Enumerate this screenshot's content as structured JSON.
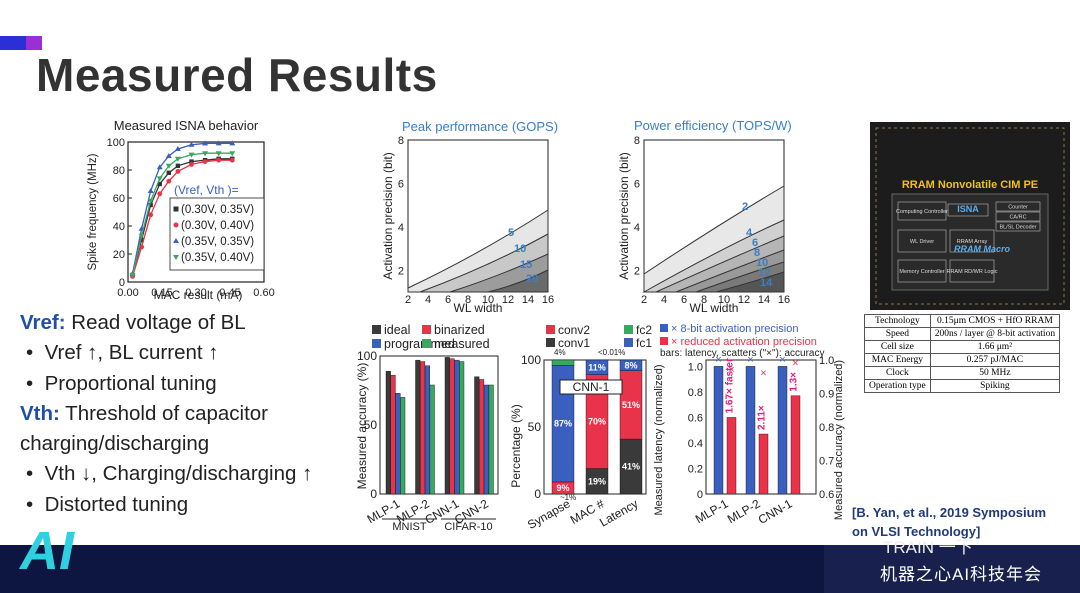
{
  "title": "Measured Results",
  "colors": {
    "blue": "#3a5fbf",
    "red": "#e8334a",
    "green": "#3aa860",
    "dark": "#3a3a3a",
    "header": "#3a7ec8",
    "footer": "#0d1640"
  },
  "notes": {
    "vref_label": "Vref:",
    "vref_text": " Read voltage of BL",
    "b1": "Vref ↑, BL current ↑",
    "b2": "Proportional tuning",
    "vth_label": "Vth:",
    "vth_text": " Threshold of capacitor charging/discharging",
    "b3": "Vth ↓, Charging/discharging ↑",
    "b4": "Distorted tuning"
  },
  "citation": {
    "line1": "[B. Yan, et al., 2019 Symposium",
    "line2": "on VLSI Technology]"
  },
  "spec_table": [
    [
      "Technology",
      "0.15μm CMOS + HfO RRAM"
    ],
    [
      "Speed",
      "200ns / layer @ 8-bit activation"
    ],
    [
      "Cell size",
      "1.66 μm²"
    ],
    [
      "MAC Energy",
      "0.257 pJ/MAC"
    ],
    [
      "Clock",
      "50 MHz"
    ],
    [
      "Operation type",
      "Spiking"
    ]
  ],
  "chip": {
    "title": "RRAM Nonvolatile CIM PE",
    "blocks": [
      "Counter",
      "CA/RC",
      "BL/SL Decoder",
      "Computing Controller",
      "ISNA",
      "WL Driver",
      "RRAM Array",
      "Memory Controller",
      "RRAM RD/WR Logic",
      "RRAM Macro"
    ]
  },
  "footer": {
    "event": "机器之心AI科技年会",
    "watermark": "TRAIN 一下",
    "logo": "AI"
  },
  "chart_data": [
    {
      "type": "line",
      "title": "Measured ISNA behavior",
      "xlabel": "MAC result (mA)",
      "ylabel": "Spike frequency (MHz)",
      "xlim": [
        0,
        0.6
      ],
      "ylim": [
        0,
        100
      ],
      "xticks": [
        "0.00",
        "0.15",
        "0.30",
        "0.45",
        "0.60"
      ],
      "yticks": [
        "0",
        "20",
        "40",
        "60",
        "80",
        "100"
      ],
      "legend_title": "(Vref, Vth )=",
      "series": [
        {
          "name": "(0.30V, 0.35V)",
          "color": "#333333",
          "marker": "square",
          "x": [
            0.02,
            0.06,
            0.1,
            0.14,
            0.18,
            0.22,
            0.28,
            0.34,
            0.4,
            0.46
          ],
          "y": [
            5,
            30,
            55,
            70,
            78,
            83,
            86,
            87,
            88,
            88
          ]
        },
        {
          "name": "(0.30V, 0.40V)",
          "color": "#e8334a",
          "marker": "circle",
          "x": [
            0.02,
            0.06,
            0.1,
            0.14,
            0.18,
            0.22,
            0.28,
            0.34,
            0.4,
            0.46
          ],
          "y": [
            4,
            25,
            48,
            63,
            72,
            79,
            84,
            86,
            87,
            87
          ]
        },
        {
          "name": "(0.35V, 0.35V)",
          "color": "#3a5fbf",
          "marker": "triangle",
          "x": [
            0.02,
            0.06,
            0.1,
            0.14,
            0.18,
            0.22,
            0.28,
            0.34,
            0.4,
            0.46
          ],
          "y": [
            6,
            38,
            65,
            82,
            90,
            95,
            98,
            99,
            99,
            99
          ]
        },
        {
          "name": "(0.35V, 0.40V)",
          "color": "#3aa860",
          "marker": "triangle-down",
          "x": [
            0.02,
            0.06,
            0.1,
            0.14,
            0.18,
            0.22,
            0.28,
            0.34,
            0.4,
            0.46
          ],
          "y": [
            5,
            33,
            58,
            74,
            83,
            88,
            91,
            92,
            92,
            92
          ]
        }
      ]
    },
    {
      "type": "contour",
      "title": "Peak performance (GOPS)",
      "xlabel": "WL width",
      "ylabel": "Activation precision (bit)",
      "xticks": [
        "2",
        "4",
        "6",
        "8",
        "10",
        "12",
        "14",
        "16"
      ],
      "yticks": [
        "2",
        "4",
        "6",
        "8"
      ],
      "contour_labels": [
        "5",
        "10",
        "15",
        "20"
      ]
    },
    {
      "type": "contour",
      "title": "Power efficiency (TOPS/W)",
      "xlabel": "WL width",
      "ylabel": "Activation precision (bit)",
      "xticks": [
        "2",
        "4",
        "6",
        "8",
        "10",
        "12",
        "14",
        "16"
      ],
      "yticks": [
        "2",
        "4",
        "6",
        "8"
      ],
      "contour_labels": [
        "2",
        "4",
        "6",
        "8",
        "10",
        "12",
        "14"
      ]
    },
    {
      "type": "bar",
      "ylabel": "Measured accuracy (%)",
      "categories": [
        "MLP-1",
        "MLP-2",
        "CNN-1",
        "CNN-2"
      ],
      "groups": [
        "MNIST",
        "CIFAR-10"
      ],
      "ylim": [
        0,
        100
      ],
      "yticks": [
        "0",
        "50",
        "100"
      ],
      "series": [
        {
          "name": "ideal",
          "color": "#3a3a3a",
          "values": [
            89,
            97,
            99,
            85
          ]
        },
        {
          "name": "binarized",
          "color": "#e8334a",
          "values": [
            86,
            96,
            98,
            83
          ]
        },
        {
          "name": "programmed",
          "color": "#3a5fbf",
          "values": [
            73,
            93,
            97,
            79
          ]
        },
        {
          "name": "measured",
          "color": "#3aa860",
          "values": [
            70,
            79,
            96,
            79
          ]
        }
      ]
    },
    {
      "type": "stacked-bar",
      "ylabel": "Percentage (%)",
      "categories": [
        "Synapse",
        "MAC #",
        "Latency"
      ],
      "ylim": [
        0,
        100
      ],
      "yticks": [
        "0",
        "50",
        "100"
      ],
      "annotation": "CNN-1",
      "top_notes": [
        "4%",
        "<0.01%"
      ],
      "small_note": "~1%",
      "series": [
        {
          "name": "conv1",
          "color": "#3a3a3a",
          "values": [
            0,
            19,
            41
          ]
        },
        {
          "name": "conv2",
          "color": "#e8334a",
          "values": [
            9,
            70,
            51
          ]
        },
        {
          "name": "fc1",
          "color": "#3a5fbf",
          "values": [
            87,
            11,
            8
          ]
        },
        {
          "name": "fc2",
          "color": "#3aa860",
          "values": [
            4,
            0,
            0
          ]
        }
      ],
      "labels": [
        [
          "",
          "9%",
          "87%",
          ""
        ],
        [
          "19%",
          "70%",
          "11%",
          ""
        ],
        [
          "41%",
          "51%",
          "8%",
          ""
        ]
      ]
    },
    {
      "type": "bar",
      "legend": [
        "× 8-bit activation precision",
        "× reduced activation precision",
        "bars: latency, scatters (\"×\"): accuracy"
      ],
      "ylabel": "Measured latency (normalized)",
      "y2label": "Measured accuracy (normalized)",
      "categories": [
        "MLP-1",
        "MLP-2",
        "CNN-1"
      ],
      "ylim": [
        0,
        1.0
      ],
      "yticks": [
        "0",
        "0.2",
        "0.4",
        "0.6",
        "0.8",
        "1.0"
      ],
      "y2lim": [
        0.6,
        1.0
      ],
      "y2ticks": [
        "0.6",
        "0.7",
        "0.8",
        "0.9",
        "1.0"
      ],
      "series": [
        {
          "name": "8-bit activation precision",
          "color": "#3a5fbf",
          "values": [
            1.0,
            1.0,
            1.0
          ]
        },
        {
          "name": "reduced activation precision",
          "color": "#e8334a",
          "values": [
            0.6,
            0.47,
            0.77
          ]
        }
      ],
      "accuracy": {
        "blue": [
          1.0,
          1.0,
          1.0
        ],
        "red": [
          0.97,
          0.96,
          0.99
        ]
      },
      "speedup_labels": [
        "1.67× faster",
        "2.11×",
        "1.3×"
      ]
    }
  ]
}
